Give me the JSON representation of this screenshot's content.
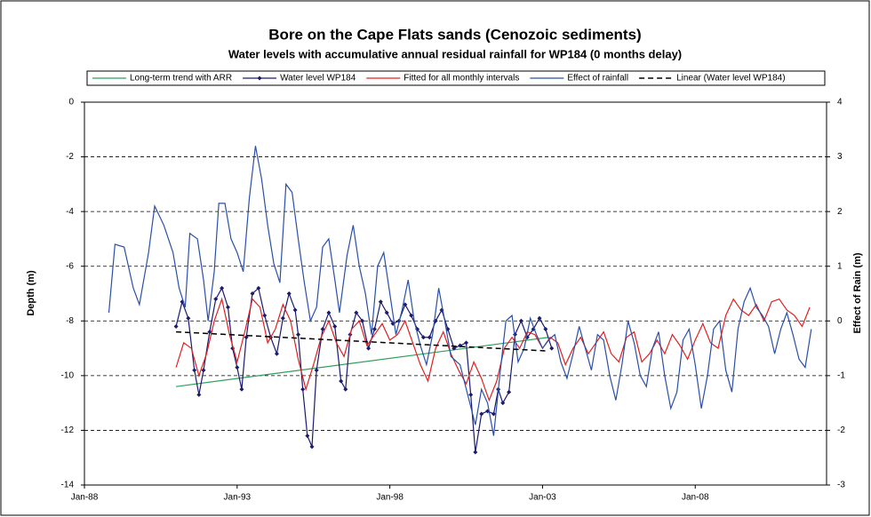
{
  "chart_data": {
    "type": "line",
    "title": "Bore on the Cape Flats sands (Cenozoic sediments)",
    "subtitle": "Water levels with accumulative annual residual rainfall for WP184 (0 months delay)",
    "y_label": "Depth (m)",
    "y2_label": "Effect of Rain (m)",
    "xlim": [
      1988,
      2012.3
    ],
    "xticks": [
      {
        "value": 1988,
        "label": "Jan-88"
      },
      {
        "value": 1993,
        "label": "Jan-93"
      },
      {
        "value": 1998,
        "label": "Jan-98"
      },
      {
        "value": 2003,
        "label": "Jan-03"
      },
      {
        "value": 2008,
        "label": "Jan-08"
      }
    ],
    "ylim": [
      -14,
      0
    ],
    "yticks": [
      0,
      -2,
      -4,
      -6,
      -8,
      -10,
      -12,
      -14
    ],
    "y2lim": [
      -3,
      4
    ],
    "y2ticks": [
      4,
      3,
      2,
      1,
      0,
      -1,
      -2,
      -3
    ],
    "grid": true,
    "legend": "top",
    "series": [
      {
        "name": "Long-term trend with ARR",
        "color": "#2ca05a",
        "x": [
          1991.0,
          2003.2
        ],
        "values": [
          -10.4,
          -8.6
        ]
      },
      {
        "name": "Water level WP184",
        "color": "#1a1a6e",
        "marker": "diamond",
        "x": [
          1991.0,
          1991.2,
          1991.4,
          1991.6,
          1991.75,
          1991.9,
          1992.1,
          1992.3,
          1992.5,
          1992.7,
          1992.85,
          1993.0,
          1993.15,
          1993.3,
          1993.5,
          1993.7,
          1993.9,
          1994.1,
          1994.3,
          1994.5,
          1994.7,
          1994.9,
          1995.0,
          1995.15,
          1995.3,
          1995.45,
          1995.6,
          1995.8,
          1996.0,
          1996.2,
          1996.4,
          1996.55,
          1996.7,
          1996.9,
          1997.1,
          1997.3,
          1997.5,
          1997.7,
          1997.9,
          1998.1,
          1998.3,
          1998.5,
          1998.7,
          1998.9,
          1999.1,
          1999.3,
          1999.5,
          1999.7,
          1999.9,
          2000.1,
          2000.3,
          2000.5,
          2000.65,
          2000.8,
          2001.0,
          2001.2,
          2001.4,
          2001.55,
          2001.7,
          2001.9,
          2002.1,
          2002.3,
          2002.5,
          2002.7,
          2002.9,
          2003.1,
          2003.3
        ],
        "values": [
          -8.2,
          -7.3,
          -7.9,
          -9.8,
          -10.7,
          -9.8,
          -8.4,
          -7.2,
          -6.8,
          -7.5,
          -9.0,
          -9.7,
          -10.5,
          -8.6,
          -7.0,
          -6.8,
          -7.8,
          -8.6,
          -9.2,
          -7.9,
          -7.0,
          -7.6,
          -8.5,
          -10.5,
          -12.2,
          -12.6,
          -9.8,
          -8.3,
          -7.7,
          -8.2,
          -10.2,
          -10.5,
          -8.5,
          -7.7,
          -8.0,
          -9.0,
          -8.3,
          -7.3,
          -7.7,
          -8.1,
          -8.0,
          -7.4,
          -7.8,
          -8.3,
          -8.6,
          -8.6,
          -8.0,
          -7.6,
          -8.3,
          -9.0,
          -8.9,
          -8.8,
          -10.7,
          -12.8,
          -11.4,
          -11.3,
          -11.4,
          -10.5,
          -11.0,
          -10.6,
          -8.5,
          -8.0,
          -8.6,
          -8.3,
          -7.9,
          -8.3,
          -9.0
        ]
      },
      {
        "name": "Fitted for all monthly intervals",
        "color": "#e02020",
        "x": [
          1991.0,
          1991.25,
          1991.5,
          1991.75,
          1992.0,
          1992.25,
          1992.5,
          1992.75,
          1993.0,
          1993.25,
          1993.5,
          1993.75,
          1994.0,
          1994.25,
          1994.5,
          1994.75,
          1995.0,
          1995.25,
          1995.5,
          1995.75,
          1996.0,
          1996.25,
          1996.5,
          1996.75,
          1997.0,
          1997.25,
          1997.5,
          1997.75,
          1998.0,
          1998.25,
          1998.5,
          1998.75,
          1999.0,
          1999.25,
          1999.5,
          1999.75,
          2000.0,
          2000.25,
          2000.5,
          2000.75,
          2001.0,
          2001.25,
          2001.5,
          2001.75,
          2002.0,
          2002.25,
          2002.5,
          2002.75,
          2003.0,
          2003.25,
          2003.5,
          2003.75,
          2004.0,
          2004.25,
          2004.5,
          2004.75,
          2005.0,
          2005.25,
          2005.5,
          2005.75,
          2006.0,
          2006.25,
          2006.5,
          2006.75,
          2007.0,
          2007.25,
          2007.5,
          2007.75,
          2008.0,
          2008.25,
          2008.5,
          2008.75,
          2009.0,
          2009.25,
          2009.5,
          2009.75,
          2010.0,
          2010.25,
          2010.5,
          2010.75,
          2011.0,
          2011.25,
          2011.5,
          2011.75
        ],
        "values": [
          -9.7,
          -8.8,
          -9.0,
          -10.0,
          -9.2,
          -8.0,
          -7.2,
          -8.5,
          -9.5,
          -8.4,
          -7.2,
          -7.5,
          -8.8,
          -8.3,
          -7.4,
          -8.0,
          -9.4,
          -10.5,
          -9.6,
          -8.6,
          -8.0,
          -8.8,
          -9.3,
          -8.3,
          -8.0,
          -8.9,
          -8.5,
          -8.1,
          -8.7,
          -8.5,
          -8.0,
          -8.8,
          -9.6,
          -10.2,
          -9.0,
          -8.4,
          -9.2,
          -9.8,
          -10.3,
          -9.5,
          -10.1,
          -10.9,
          -10.2,
          -9.0,
          -8.6,
          -9.0,
          -8.4,
          -8.5,
          -9.0,
          -8.6,
          -8.8,
          -9.6,
          -9.0,
          -8.6,
          -9.2,
          -8.8,
          -8.4,
          -9.2,
          -9.5,
          -8.6,
          -8.4,
          -9.5,
          -9.2,
          -8.7,
          -9.2,
          -8.5,
          -8.9,
          -9.4,
          -8.7,
          -8.1,
          -8.8,
          -9.0,
          -7.8,
          -7.2,
          -7.6,
          -7.8,
          -7.4,
          -8.0,
          -7.3,
          -7.2,
          -7.6,
          -7.8,
          -8.2,
          -7.5
        ]
      },
      {
        "name": "Effect of rainfall",
        "color": "#2a4fa8",
        "axis": "y2",
        "x": [
          1988.8,
          1989.0,
          1989.3,
          1989.6,
          1989.8,
          1990.1,
          1990.3,
          1990.6,
          1990.9,
          1991.1,
          1991.3,
          1991.45,
          1991.7,
          1991.9,
          1992.05,
          1992.25,
          1992.4,
          1992.6,
          1992.8,
          1993.0,
          1993.2,
          1993.4,
          1993.6,
          1993.8,
          1994.0,
          1994.2,
          1994.4,
          1994.6,
          1994.8,
          1995.0,
          1995.2,
          1995.4,
          1995.6,
          1995.8,
          1996.0,
          1996.2,
          1996.35,
          1996.6,
          1996.8,
          1997.0,
          1997.2,
          1997.4,
          1997.6,
          1997.8,
          1998.0,
          1998.2,
          1998.4,
          1998.6,
          1998.8,
          1999.0,
          1999.2,
          1999.4,
          1999.6,
          1999.8,
          2000.0,
          2000.3,
          2000.55,
          2000.8,
          2001.0,
          2001.2,
          2001.4,
          2001.6,
          2001.8,
          2002.0,
          2002.2,
          2002.4,
          2002.6,
          2002.8,
          2003.0,
          2003.2,
          2003.4,
          2003.6,
          2003.8,
          2004.0,
          2004.2,
          2004.4,
          2004.6,
          2004.8,
          2005.0,
          2005.2,
          2005.4,
          2005.6,
          2005.8,
          2006.0,
          2006.2,
          2006.4,
          2006.6,
          2006.8,
          2007.0,
          2007.2,
          2007.4,
          2007.6,
          2007.8,
          2008.0,
          2008.2,
          2008.4,
          2008.6,
          2008.8,
          2009.0,
          2009.2,
          2009.4,
          2009.6,
          2009.8,
          2010.0,
          2010.2,
          2010.4,
          2010.6,
          2010.8,
          2011.0,
          2011.2,
          2011.4,
          2011.6,
          2011.8
        ],
        "values": [
          0.15,
          1.4,
          1.35,
          0.6,
          0.3,
          1.25,
          2.1,
          1.75,
          1.25,
          0.6,
          0.25,
          1.6,
          1.5,
          0.75,
          0,
          0.9,
          2.15,
          2.15,
          1.5,
          1.25,
          0.9,
          2.25,
          3.2,
          2.6,
          1.75,
          1.05,
          0.7,
          2.5,
          2.35,
          1.5,
          0.7,
          0,
          0.25,
          1.35,
          1.5,
          0.75,
          0.15,
          1.2,
          1.75,
          1.0,
          0.5,
          -0.25,
          1.0,
          1.25,
          0.5,
          -0.25,
          0.2,
          0.75,
          0,
          -0.45,
          -0.8,
          -0.25,
          0.6,
          0,
          -0.65,
          -0.8,
          -1.35,
          -1.9,
          -1.25,
          -1.5,
          -2.1,
          -1.0,
          0,
          0.1,
          -0.75,
          -0.5,
          0.05,
          -0.25,
          -0.5,
          -0.35,
          -0.25,
          -0.75,
          -1.05,
          -0.6,
          -0.1,
          -0.5,
          -0.9,
          -0.25,
          -0.35,
          -1.0,
          -1.45,
          -0.8,
          0,
          -0.4,
          -1.0,
          -1.2,
          -0.5,
          -0.2,
          -1.0,
          -1.6,
          -1.3,
          -0.35,
          -0.15,
          -0.8,
          -1.6,
          -1.0,
          -0.15,
          0,
          -0.9,
          -1.3,
          -0.15,
          0.35,
          0.6,
          0.25,
          0.1,
          -0.1,
          -0.6,
          -0.15,
          0.15,
          -0.25,
          -0.7,
          -0.85,
          -0.15
        ]
      },
      {
        "name": "Linear (Water level WP184)",
        "color": "#000000",
        "dash": true,
        "x": [
          1991.0,
          2003.2
        ],
        "values": [
          -8.4,
          -9.1
        ]
      }
    ]
  }
}
